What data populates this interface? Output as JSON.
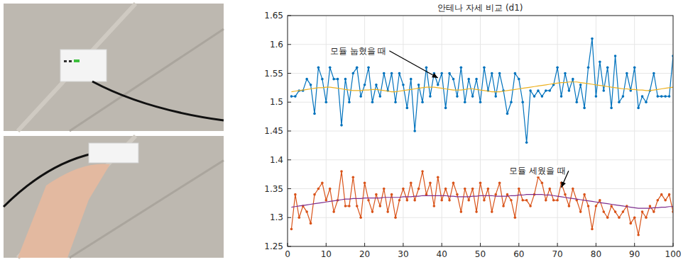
{
  "chart_data": {
    "type": "line",
    "title": "안테나 자세 비교 (d1)",
    "x": [
      1,
      2,
      3,
      4,
      5,
      6,
      7,
      8,
      9,
      10,
      11,
      12,
      13,
      14,
      15,
      16,
      17,
      18,
      19,
      20,
      21,
      22,
      23,
      24,
      25,
      26,
      27,
      28,
      29,
      30,
      31,
      32,
      33,
      34,
      35,
      36,
      37,
      38,
      39,
      40,
      41,
      42,
      43,
      44,
      45,
      46,
      47,
      48,
      49,
      50,
      51,
      52,
      53,
      54,
      55,
      56,
      57,
      58,
      59,
      60,
      61,
      62,
      63,
      64,
      65,
      66,
      67,
      68,
      69,
      70,
      71,
      72,
      73,
      74,
      75,
      76,
      77,
      78,
      79,
      80,
      81,
      82,
      83,
      84,
      85,
      86,
      87,
      88,
      89,
      90,
      91,
      92,
      93,
      94,
      95,
      96,
      97,
      98,
      99,
      100
    ],
    "xlim": [
      0,
      100
    ],
    "xticks": [
      0,
      10,
      20,
      30,
      40,
      50,
      60,
      70,
      80,
      90,
      100
    ],
    "ylim": [
      1.25,
      1.65
    ],
    "yticks": [
      1.25,
      1.3,
      1.35,
      1.4,
      1.45,
      1.5,
      1.55,
      1.6,
      1.65
    ],
    "grid": true,
    "series": [
      {
        "name": "모듈 눕혔을 때",
        "color": "#0072bd",
        "marker": "point",
        "values": [
          1.51,
          1.51,
          1.52,
          1.52,
          1.54,
          1.53,
          1.48,
          1.56,
          1.54,
          1.5,
          1.56,
          1.54,
          1.54,
          1.46,
          1.54,
          1.5,
          1.55,
          1.56,
          1.51,
          1.53,
          1.56,
          1.5,
          1.53,
          1.51,
          1.55,
          1.52,
          1.55,
          1.5,
          1.55,
          1.53,
          1.49,
          1.54,
          1.45,
          1.53,
          1.5,
          1.56,
          1.51,
          1.55,
          1.53,
          1.55,
          1.49,
          1.55,
          1.54,
          1.51,
          1.56,
          1.5,
          1.54,
          1.51,
          1.54,
          1.5,
          1.56,
          1.52,
          1.55,
          1.51,
          1.55,
          1.52,
          1.48,
          1.5,
          1.55,
          1.54,
          1.5,
          1.43,
          1.52,
          1.51,
          1.52,
          1.51,
          1.52,
          1.52,
          1.53,
          1.56,
          1.51,
          1.55,
          1.52,
          1.54,
          1.5,
          1.53,
          1.49,
          1.56,
          1.61,
          1.51,
          1.57,
          1.52,
          1.56,
          1.49,
          1.58,
          1.5,
          1.51,
          1.55,
          1.52,
          1.56,
          1.49,
          1.51,
          1.5,
          1.52,
          1.55,
          1.51,
          1.51,
          1.51,
          1.51,
          1.58
        ]
      },
      {
        "color": "#edb120",
        "values": [
          1.518,
          1.519,
          1.52,
          1.521,
          1.522,
          1.523,
          1.524,
          1.525,
          1.525,
          1.526,
          1.526,
          1.525,
          1.524,
          1.523,
          1.522,
          1.521,
          1.52,
          1.52,
          1.52,
          1.521,
          1.521,
          1.522,
          1.522,
          1.521,
          1.52,
          1.519,
          1.518,
          1.518,
          1.519,
          1.52,
          1.521,
          1.522,
          1.523,
          1.524,
          1.525,
          1.526,
          1.526,
          1.526,
          1.525,
          1.524,
          1.523,
          1.522,
          1.521,
          1.521,
          1.521,
          1.522,
          1.523,
          1.523,
          1.522,
          1.521,
          1.52,
          1.519,
          1.518,
          1.518,
          1.518,
          1.519,
          1.52,
          1.521,
          1.522,
          1.523,
          1.524,
          1.525,
          1.526,
          1.527,
          1.528,
          1.529,
          1.53,
          1.531,
          1.532,
          1.533,
          1.534,
          1.534,
          1.535,
          1.535,
          1.535,
          1.534,
          1.533,
          1.532,
          1.531,
          1.53,
          1.529,
          1.528,
          1.527,
          1.526,
          1.525,
          1.524,
          1.523,
          1.523,
          1.522,
          1.522,
          1.521,
          1.521,
          1.52,
          1.52,
          1.521,
          1.522,
          1.523,
          1.524,
          1.525,
          1.526
        ]
      },
      {
        "name": "모듈 세웠을 때",
        "color": "#d95319",
        "marker": "point",
        "values": [
          1.28,
          1.34,
          1.3,
          1.32,
          1.31,
          1.29,
          1.34,
          1.35,
          1.36,
          1.33,
          1.35,
          1.31,
          1.33,
          1.38,
          1.32,
          1.32,
          1.37,
          1.32,
          1.3,
          1.36,
          1.33,
          1.31,
          1.34,
          1.32,
          1.35,
          1.31,
          1.34,
          1.3,
          1.33,
          1.35,
          1.33,
          1.36,
          1.33,
          1.35,
          1.38,
          1.34,
          1.36,
          1.32,
          1.37,
          1.33,
          1.35,
          1.33,
          1.36,
          1.34,
          1.31,
          1.35,
          1.33,
          1.35,
          1.31,
          1.36,
          1.33,
          1.35,
          1.31,
          1.34,
          1.36,
          1.32,
          1.34,
          1.33,
          1.3,
          1.35,
          1.33,
          1.33,
          1.32,
          1.34,
          1.37,
          1.36,
          1.33,
          1.35,
          1.33,
          1.33,
          1.36,
          1.34,
          1.32,
          1.35,
          1.33,
          1.31,
          1.34,
          1.32,
          1.28,
          1.32,
          1.33,
          1.31,
          1.3,
          1.32,
          1.31,
          1.3,
          1.31,
          1.32,
          1.29,
          1.3,
          1.27,
          1.31,
          1.3,
          1.32,
          1.31,
          1.33,
          1.34,
          1.33,
          1.34,
          1.31
        ]
      },
      {
        "color": "#7e2f8e",
        "values": [
          1.318,
          1.319,
          1.32,
          1.321,
          1.322,
          1.323,
          1.324,
          1.325,
          1.326,
          1.327,
          1.328,
          1.329,
          1.33,
          1.331,
          1.332,
          1.332,
          1.333,
          1.333,
          1.333,
          1.334,
          1.334,
          1.334,
          1.334,
          1.334,
          1.335,
          1.335,
          1.335,
          1.335,
          1.335,
          1.336,
          1.336,
          1.336,
          1.337,
          1.337,
          1.338,
          1.338,
          1.338,
          1.338,
          1.338,
          1.338,
          1.338,
          1.337,
          1.337,
          1.336,
          1.336,
          1.336,
          1.336,
          1.337,
          1.337,
          1.338,
          1.338,
          1.338,
          1.338,
          1.337,
          1.337,
          1.337,
          1.337,
          1.338,
          1.338,
          1.339,
          1.339,
          1.34,
          1.34,
          1.34,
          1.34,
          1.34,
          1.339,
          1.339,
          1.338,
          1.337,
          1.336,
          1.335,
          1.334,
          1.333,
          1.332,
          1.331,
          1.33,
          1.329,
          1.328,
          1.327,
          1.326,
          1.325,
          1.324,
          1.323,
          1.322,
          1.321,
          1.32,
          1.319,
          1.318,
          1.317,
          1.316,
          1.316,
          1.316,
          1.316,
          1.317,
          1.317,
          1.318,
          1.318,
          1.319,
          1.319
        ]
      }
    ]
  }
}
